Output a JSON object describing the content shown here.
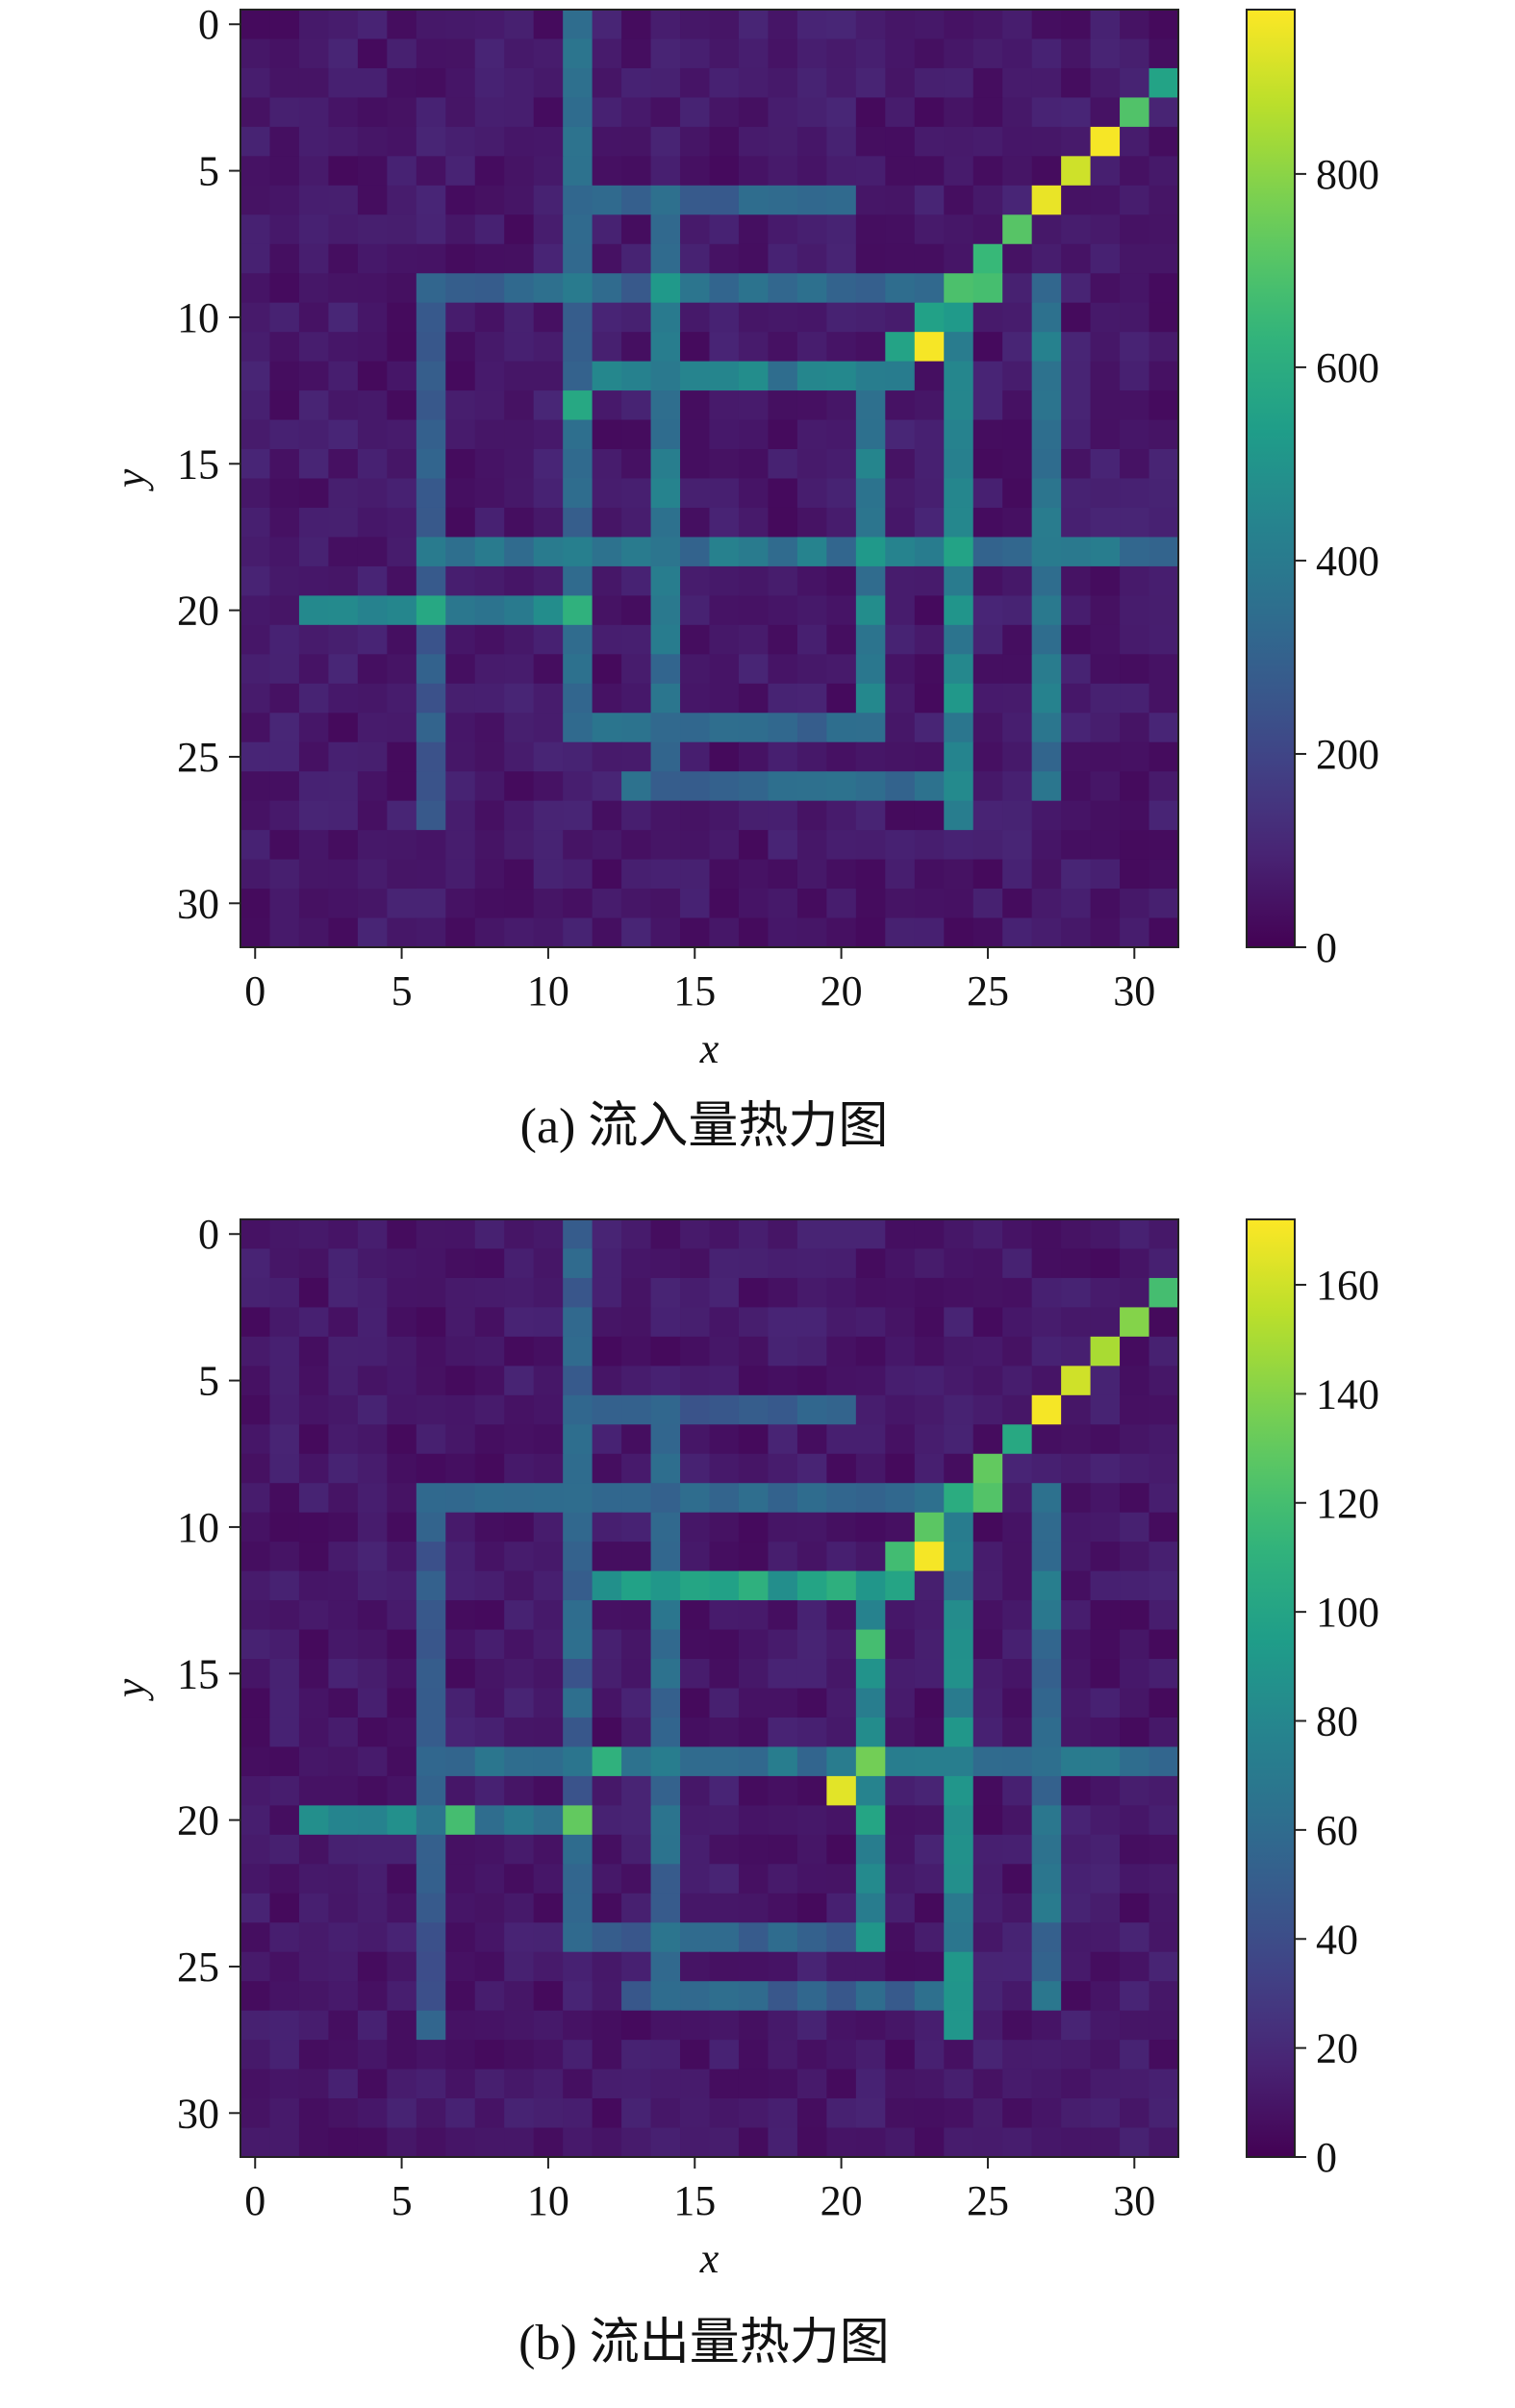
{
  "chart_data": [
    {
      "type": "heatmap",
      "caption": "(a) 流入量热力图",
      "xlabel": "x",
      "ylabel": "y",
      "grid_size": [
        32,
        32
      ],
      "x_ticks": [
        0,
        5,
        10,
        15,
        20,
        25,
        30
      ],
      "y_ticks": [
        0,
        5,
        10,
        15,
        20,
        25,
        30
      ],
      "colormap": "viridis",
      "colorbar": {
        "min": 0,
        "max": 970,
        "ticks": [
          0,
          200,
          400,
          600,
          800
        ]
      },
      "grid": false,
      "base_level": 70,
      "segments": [
        {
          "x0": 11,
          "y0": 0,
          "x1": 11,
          "y1": 24,
          "v": 350
        },
        {
          "x0": 14,
          "y0": 6,
          "x1": 14,
          "y1": 25,
          "v": 380
        },
        {
          "x0": 6,
          "y0": 9,
          "x1": 6,
          "y1": 27,
          "v": 300
        },
        {
          "x0": 21,
          "y0": 12,
          "x1": 21,
          "y1": 24,
          "v": 420
        },
        {
          "x0": 24,
          "y0": 9,
          "x1": 24,
          "y1": 27,
          "v": 460
        },
        {
          "x0": 27,
          "y0": 9,
          "x1": 27,
          "y1": 26,
          "v": 380
        },
        {
          "x0": 6,
          "y0": 9,
          "x1": 24,
          "y1": 9,
          "v": 330
        },
        {
          "x0": 11,
          "y0": 6,
          "x1": 20,
          "y1": 6,
          "v": 330
        },
        {
          "x0": 12,
          "y0": 12,
          "x1": 22,
          "y1": 12,
          "v": 420
        },
        {
          "x0": 6,
          "y0": 18,
          "x1": 31,
          "y1": 18,
          "v": 380
        },
        {
          "x0": 2,
          "y0": 20,
          "x1": 11,
          "y1": 20,
          "v": 420
        },
        {
          "x0": 11,
          "y0": 24,
          "x1": 21,
          "y1": 24,
          "v": 350
        },
        {
          "x0": 13,
          "y0": 26,
          "x1": 23,
          "y1": 26,
          "v": 330
        },
        {
          "x0": 22,
          "y0": 11,
          "x1": 31,
          "y1": 2,
          "v": 650
        }
      ],
      "hotspots": [
        {
          "x": 29,
          "y": 4,
          "v": 960
        },
        {
          "x": 28,
          "y": 5,
          "v": 900
        },
        {
          "x": 27,
          "y": 6,
          "v": 940
        },
        {
          "x": 30,
          "y": 3,
          "v": 700
        },
        {
          "x": 31,
          "y": 2,
          "v": 560
        },
        {
          "x": 25,
          "y": 8,
          "v": 650
        },
        {
          "x": 25,
          "y": 9,
          "v": 680
        },
        {
          "x": 23,
          "y": 11,
          "v": 960
        },
        {
          "x": 11,
          "y": 20,
          "v": 620
        },
        {
          "x": 6,
          "y": 20,
          "v": 580
        },
        {
          "x": 24,
          "y": 18,
          "v": 560
        },
        {
          "x": 21,
          "y": 18,
          "v": 520
        },
        {
          "x": 14,
          "y": 9,
          "v": 520
        },
        {
          "x": 11,
          "y": 13,
          "v": 580
        }
      ]
    },
    {
      "type": "heatmap",
      "caption": "(b) 流出量热力图",
      "xlabel": "x",
      "ylabel": "y",
      "grid_size": [
        32,
        32
      ],
      "x_ticks": [
        0,
        5,
        10,
        15,
        20,
        25,
        30
      ],
      "y_ticks": [
        0,
        5,
        10,
        15,
        20,
        25,
        30
      ],
      "colormap": "viridis",
      "colorbar": {
        "min": 0,
        "max": 172,
        "ticks": [
          0,
          20,
          40,
          60,
          80,
          100,
          120,
          140,
          160
        ]
      },
      "grid": false,
      "base_level": 12,
      "segments": [
        {
          "x0": 11,
          "y0": 0,
          "x1": 11,
          "y1": 24,
          "v": 55
        },
        {
          "x0": 14,
          "y0": 6,
          "x1": 14,
          "y1": 25,
          "v": 60
        },
        {
          "x0": 6,
          "y0": 9,
          "x1": 6,
          "y1": 27,
          "v": 50
        },
        {
          "x0": 21,
          "y0": 12,
          "x1": 21,
          "y1": 24,
          "v": 90
        },
        {
          "x0": 24,
          "y0": 9,
          "x1": 24,
          "y1": 27,
          "v": 80
        },
        {
          "x0": 27,
          "y0": 9,
          "x1": 27,
          "y1": 26,
          "v": 65
        },
        {
          "x0": 6,
          "y0": 9,
          "x1": 24,
          "y1": 9,
          "v": 55
        },
        {
          "x0": 11,
          "y0": 6,
          "x1": 20,
          "y1": 6,
          "v": 50
        },
        {
          "x0": 12,
          "y0": 12,
          "x1": 22,
          "y1": 12,
          "v": 95
        },
        {
          "x0": 6,
          "y0": 18,
          "x1": 31,
          "y1": 18,
          "v": 65
        },
        {
          "x0": 2,
          "y0": 20,
          "x1": 11,
          "y1": 20,
          "v": 75
        },
        {
          "x0": 11,
          "y0": 24,
          "x1": 21,
          "y1": 24,
          "v": 55
        },
        {
          "x0": 13,
          "y0": 26,
          "x1": 23,
          "y1": 26,
          "v": 55
        },
        {
          "x0": 22,
          "y0": 11,
          "x1": 31,
          "y1": 2,
          "v": 115
        }
      ],
      "hotspots": [
        {
          "x": 29,
          "y": 4,
          "v": 150
        },
        {
          "x": 28,
          "y": 5,
          "v": 160
        },
        {
          "x": 27,
          "y": 6,
          "v": 170
        },
        {
          "x": 30,
          "y": 3,
          "v": 140
        },
        {
          "x": 31,
          "y": 2,
          "v": 120
        },
        {
          "x": 25,
          "y": 8,
          "v": 130
        },
        {
          "x": 25,
          "y": 9,
          "v": 125
        },
        {
          "x": 23,
          "y": 11,
          "v": 170
        },
        {
          "x": 20,
          "y": 19,
          "v": 165
        },
        {
          "x": 21,
          "y": 18,
          "v": 135
        },
        {
          "x": 21,
          "y": 14,
          "v": 120
        },
        {
          "x": 11,
          "y": 20,
          "v": 130
        },
        {
          "x": 7,
          "y": 20,
          "v": 120
        },
        {
          "x": 12,
          "y": 18,
          "v": 110
        }
      ]
    }
  ]
}
